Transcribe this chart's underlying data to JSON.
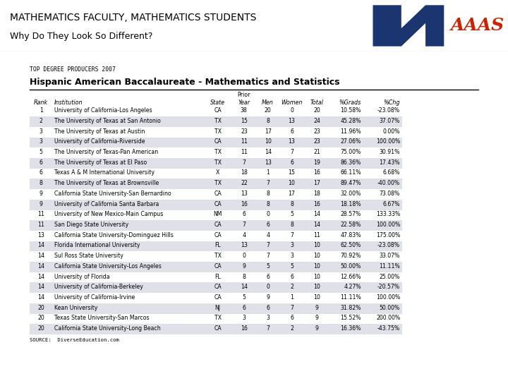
{
  "title_line1": "MATHEMATICS FACULTY, MATHEMATICS STUDENTS",
  "title_line2": "Why Do They Look So Different?",
  "title_color": "#000000",
  "title_fontsize": 10,
  "subtitle2_fontsize": 9,
  "bg_color": "#ffffff",
  "outer_bg": "#1111bb",
  "header_label": "TOP DEGREE PRODUCERS 2007",
  "table_title": "Hispanic American Baccalaureate - Mathematics and Statistics",
  "source": "SOURCE:  DiverseEducation.com",
  "rows": [
    [
      "1",
      "University of California-Los Angeles",
      "CA",
      "38",
      "20",
      "0",
      "20",
      "10.58%",
      "-23.08%"
    ],
    [
      "2",
      "The University of Texas at San Antonio",
      "TX",
      "15",
      "8",
      "13",
      "24",
      "45.28%",
      "37.07%"
    ],
    [
      "3",
      "The University of Texas at Austin",
      "TX",
      "23",
      "17",
      "6",
      "23",
      "11.96%",
      "0.00%"
    ],
    [
      "3",
      "University of California-Riverside",
      "CA",
      "11",
      "10",
      "13",
      "23",
      "27.06%",
      "100.00%"
    ],
    [
      "5",
      "The University of Texas-Pan American",
      "TX",
      "11",
      "14",
      "7",
      "21",
      "75.00%",
      "30.91%"
    ],
    [
      "6",
      "The University of Texas at El Paso",
      "TX",
      "7",
      "13",
      "6",
      "19",
      "86.36%",
      "17.43%"
    ],
    [
      "6",
      "Texas A & M International University",
      "X",
      "18",
      "1",
      "15",
      "16",
      "66.11%",
      "6.68%"
    ],
    [
      "8",
      "The University of Texas at Brownsville",
      "TX",
      "22",
      "7",
      "10",
      "17",
      "89.47%",
      "-40.00%"
    ],
    [
      "9",
      "California State University-San Bernardino",
      "CA",
      "13",
      "8",
      "17",
      "18",
      "32.00%",
      "73.08%"
    ],
    [
      "9",
      "University of California Santa Barbara",
      "CA",
      "16",
      "8",
      "8",
      "16",
      "18.18%",
      "6.67%"
    ],
    [
      "11",
      "University of New Mexico-Main Campus",
      "NM",
      "6",
      "0",
      "5",
      "14",
      "28.57%",
      "133.33%"
    ],
    [
      "11",
      "San Diego State University",
      "CA",
      "7",
      "6",
      "8",
      "14",
      "22.58%",
      "100.00%"
    ],
    [
      "13",
      "California State University-Dominguez Hills",
      "CA",
      "4",
      "4",
      "7",
      "11",
      "47.83%",
      "175.00%"
    ],
    [
      "14",
      "Florida International University",
      "FL",
      "13",
      "7",
      "3",
      "10",
      "62.50%",
      "-23.08%"
    ],
    [
      "14",
      "Sul Ross State University",
      "TX",
      "0",
      "7",
      "3",
      "10",
      "70.92%",
      "33.07%"
    ],
    [
      "14",
      "California State University-Los Angeles",
      "CA",
      "9",
      "5",
      "5",
      "10",
      "50.00%",
      "11.11%"
    ],
    [
      "14",
      "University of Florida",
      "FL",
      "8",
      "6",
      "6",
      "10",
      "12.66%",
      "25.00%"
    ],
    [
      "14",
      "University of California-Berkeley",
      "CA",
      "14",
      "0",
      "2",
      "10",
      "4.27%",
      "-20.57%"
    ],
    [
      "14",
      "University of California-Irvine",
      "CA",
      "5",
      "9",
      "1",
      "10",
      "11.11%",
      "100.00%"
    ],
    [
      "20",
      "Kean University",
      "NJ",
      "6",
      "6",
      "7",
      "9",
      "31.82%",
      "50.00%"
    ],
    [
      "20",
      "Texas State University-San Marcos",
      "TX",
      "3",
      "3",
      "6",
      "9",
      "15.52%",
      "200.00%"
    ],
    [
      "20",
      "California State University-Long Beach",
      "CA",
      "16",
      "7",
      "2",
      "9",
      "16.36%",
      "-43.75%"
    ]
  ],
  "inner_panel_bg": "#ffffff",
  "aaas_blue": "#1a3570",
  "aaas_red": "#cc2200",
  "stripe_color": "#e0e0e8"
}
